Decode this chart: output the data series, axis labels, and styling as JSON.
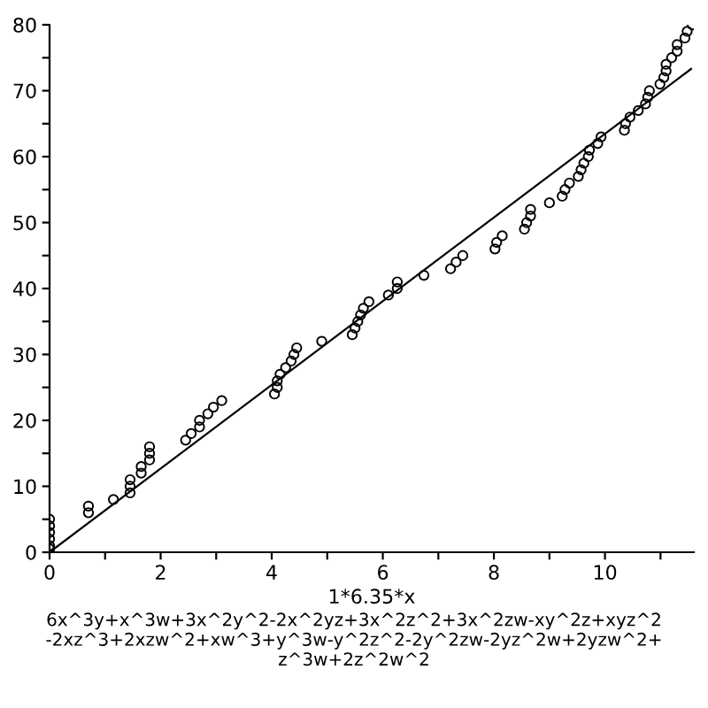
{
  "chart_data": {
    "type": "scatter",
    "xlabel": "1*6.35*x",
    "annotations": [
      "6x^3y+x^3w+3x^2y^2-2x^2yz+3x^2z^2+3x^2zw-xy^2z+xyz^2\n-2xz^3+2xzw^2+xw^3+y^3w-y^2z^2-2y^2zw-2yz^2w+2yzw^2+\nz^3w+2z^2w^2"
    ],
    "xlim": [
      0,
      11.6
    ],
    "ylim": [
      0,
      80
    ],
    "xticks": [
      0,
      {
        "value": 1,
        "label": null
      },
      2,
      {
        "value": 3,
        "label": null
      },
      4,
      {
        "value": 5,
        "label": null
      },
      6,
      {
        "value": 7,
        "label": null
      },
      8,
      {
        "value": 9,
        "label": null
      },
      10,
      {
        "value": 11,
        "label": null
      }
    ],
    "yticks": [
      0,
      {
        "value": 5,
        "label": null
      },
      10,
      {
        "value": 15,
        "label": null
      },
      20,
      {
        "value": 25,
        "label": null
      },
      30,
      {
        "value": 35,
        "label": null
      },
      40,
      {
        "value": 45,
        "label": null
      },
      50,
      {
        "value": 55,
        "label": null
      },
      60,
      {
        "value": 65,
        "label": null
      },
      70,
      {
        "value": 75,
        "label": null
      },
      80
    ],
    "grid": false,
    "legend": false,
    "series": [
      {
        "marker": "circle",
        "color": "#000000",
        "x": [
          0,
          0,
          0,
          0,
          0,
          0,
          0.7,
          0.7,
          1.15,
          1.45,
          1.45,
          1.45,
          1.65,
          1.65,
          1.8,
          1.8,
          1.8,
          2.45,
          2.55,
          2.7,
          2.7,
          2.85,
          2.95,
          3.1,
          4.05,
          4.1,
          4.1,
          4.15,
          4.25,
          4.35,
          4.4,
          4.45,
          4.9,
          5.45,
          5.5,
          5.55,
          5.6,
          5.65,
          5.75,
          6.1,
          6.26,
          6.26,
          6.74,
          7.22,
          7.32,
          7.44,
          8.02,
          8.05,
          8.15,
          8.55,
          8.59,
          8.66,
          8.66,
          9.0,
          9.23,
          9.28,
          9.36,
          9.52,
          9.57,
          9.62,
          9.7,
          9.72,
          9.87,
          9.93,
          10.35,
          10.37,
          10.45,
          10.6,
          10.73,
          10.77,
          10.8,
          10.99,
          11.06,
          11.1,
          11.1,
          11.2,
          11.3,
          11.3,
          11.44,
          11.48,
          11.57
        ],
        "values": [
          0.5,
          1,
          2,
          3,
          4,
          5,
          6,
          7,
          8,
          9,
          10,
          11,
          12,
          13,
          14,
          15,
          16,
          17,
          18,
          19,
          20,
          21,
          22,
          23,
          24,
          25,
          26,
          27,
          28,
          29,
          30,
          31,
          32,
          33,
          34,
          35,
          36,
          37,
          38,
          39,
          40,
          41,
          42,
          43,
          44,
          45,
          46,
          47,
          48,
          49,
          50,
          51,
          52,
          53,
          54,
          55,
          56,
          57,
          58,
          59,
          60,
          61,
          62,
          63,
          64,
          65,
          66,
          67,
          68,
          69,
          70,
          71,
          72,
          73,
          74,
          75,
          76,
          77,
          78,
          79,
          80
        ]
      },
      {
        "type": "line",
        "line_style": "solid",
        "color": "#000000",
        "x": [
          0,
          11.55
        ],
        "values": [
          0,
          73.3
        ]
      }
    ]
  }
}
